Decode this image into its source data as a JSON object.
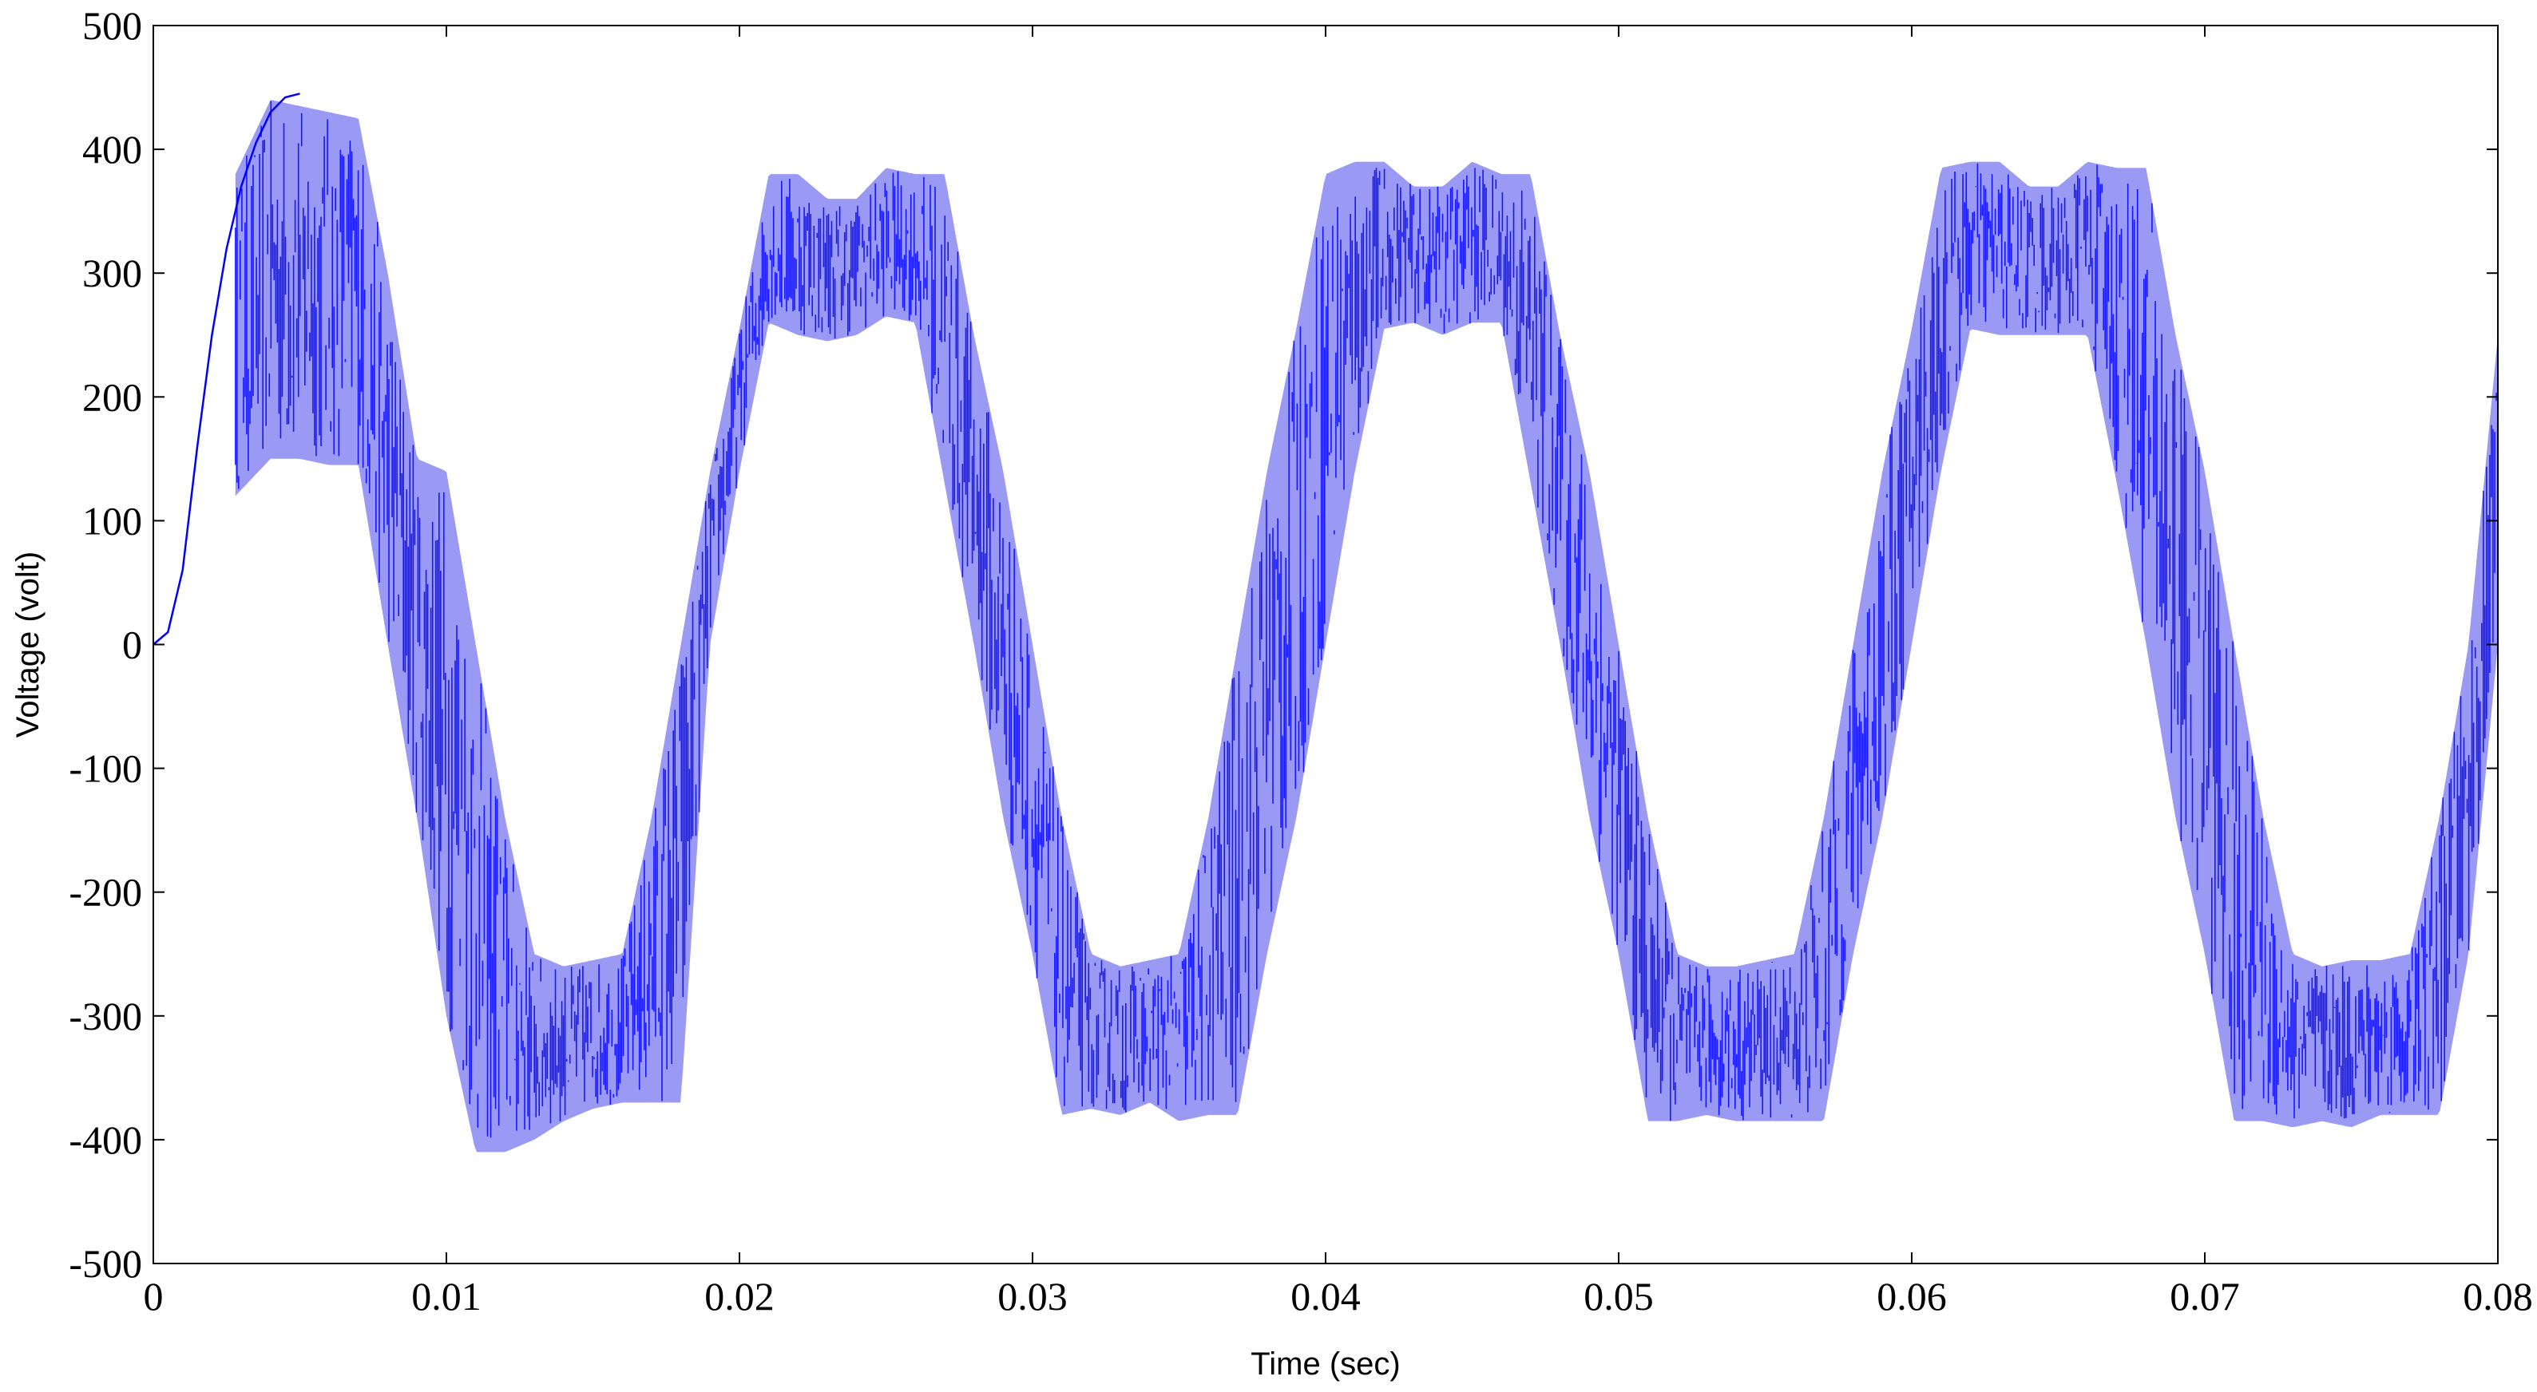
{
  "chart_data": {
    "type": "line",
    "title": "",
    "xlabel": "Time (sec)",
    "ylabel": "Voltage (volt)",
    "xlim": [
      0,
      0.08
    ],
    "ylim": [
      -500,
      500
    ],
    "xticks": [
      0,
      0.01,
      0.02,
      0.03,
      0.04,
      0.05,
      0.06,
      0.07,
      0.08
    ],
    "xtick_labels": [
      "0",
      "0.01",
      "0.02",
      "0.03",
      "0.04",
      "0.05",
      "0.06",
      "0.07",
      "0.08"
    ],
    "yticks": [
      500,
      400,
      300,
      200,
      100,
      0,
      -100,
      -200,
      -300,
      -400,
      -500
    ],
    "ytick_labels": [
      "500",
      "400",
      "300",
      "200",
      "100",
      "0",
      "-100",
      "-200",
      "-300",
      "-400",
      "-500"
    ],
    "grid": false,
    "legend": "none",
    "series": [
      {
        "color": "#0000ff",
        "fill_color": "#9a9af5",
        "description_points": {
          "note_free": true
        },
        "startup": {
          "x": [
            0,
            0.0005,
            0.001,
            0.0015,
            0.002,
            0.0025,
            0.003,
            0.0035,
            0.004,
            0.0045,
            0.005
          ],
          "y": [
            0,
            10,
            60,
            160,
            250,
            320,
            370,
            405,
            430,
            442,
            445
          ]
        },
        "envelope": {
          "x": [
            0.0028,
            0.004,
            0.005,
            0.006,
            0.007,
            0.008,
            0.009,
            0.01,
            0.011,
            0.012,
            0.013,
            0.014,
            0.015,
            0.016,
            0.017,
            0.018,
            0.019,
            0.02,
            0.021,
            0.022,
            0.023,
            0.024,
            0.025,
            0.026,
            0.027,
            0.028,
            0.029,
            0.03,
            0.031,
            0.032,
            0.033,
            0.034,
            0.035,
            0.036,
            0.037,
            0.038,
            0.039,
            0.04,
            0.041,
            0.042,
            0.043,
            0.044,
            0.045,
            0.046,
            0.047,
            0.048,
            0.049,
            0.05,
            0.051,
            0.052,
            0.053,
            0.054,
            0.055,
            0.056,
            0.057,
            0.058,
            0.059,
            0.06,
            0.061,
            0.062,
            0.063,
            0.064,
            0.065,
            0.066,
            0.067,
            0.068,
            0.069,
            0.07,
            0.071,
            0.072,
            0.073,
            0.074,
            0.075,
            0.076,
            0.077,
            0.078,
            0.079,
            0.08
          ],
          "upper": [
            380,
            440,
            435,
            430,
            425,
            300,
            150,
            140,
            0,
            -140,
            -250,
            -260,
            -255,
            -250,
            -140,
            0,
            140,
            255,
            380,
            380,
            360,
            360,
            385,
            380,
            380,
            250,
            140,
            0,
            -140,
            -250,
            -260,
            -255,
            -250,
            -140,
            0,
            140,
            255,
            380,
            390,
            390,
            370,
            370,
            390,
            380,
            380,
            250,
            140,
            0,
            -140,
            -250,
            -260,
            -260,
            -255,
            -250,
            -140,
            0,
            140,
            255,
            385,
            390,
            390,
            370,
            370,
            390,
            385,
            385,
            250,
            140,
            0,
            -140,
            -250,
            -260,
            -255,
            -255,
            -250,
            -140,
            0,
            250
          ],
          "lower": [
            120,
            150,
            150,
            145,
            145,
            0,
            -140,
            -300,
            -410,
            -410,
            -400,
            -385,
            -375,
            -370,
            -370,
            -370,
            0,
            140,
            260,
            250,
            245,
            250,
            265,
            260,
            130,
            0,
            -140,
            -250,
            -380,
            -375,
            -380,
            -370,
            -385,
            -380,
            -380,
            -250,
            -140,
            0,
            140,
            255,
            260,
            250,
            260,
            260,
            130,
            0,
            -140,
            -250,
            -385,
            -385,
            -380,
            -385,
            -385,
            -385,
            -385,
            -250,
            -140,
            0,
            140,
            255,
            250,
            250,
            250,
            250,
            130,
            0,
            -140,
            -250,
            -385,
            -385,
            -390,
            -385,
            -390,
            -380,
            -380,
            -380,
            -250,
            0
          ]
        }
      }
    ]
  }
}
